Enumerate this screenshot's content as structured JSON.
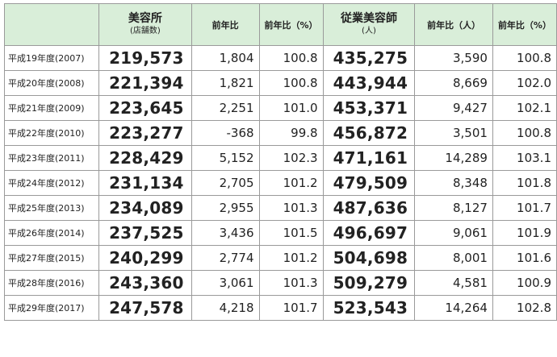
{
  "headers": {
    "blank": "",
    "salons": "美容所",
    "salons_sub": "(店舗数)",
    "yoy_count": "前年比",
    "yoy_pct": "前年比（%）",
    "stylists": "従業美容師",
    "stylists_sub": "(人)",
    "yoy_people": "前年比（人）",
    "yoy_pct2": "前年比（%）"
  },
  "rows": [
    {
      "year": "平成19年度(2007)",
      "salons": "219,573",
      "salons_yoy": "1,804",
      "salons_pct": "100.8",
      "stylists": "435,275",
      "stylists_yoy": "3,590",
      "stylists_pct": "100.8"
    },
    {
      "year": "平成20年度(2008)",
      "salons": "221,394",
      "salons_yoy": "1,821",
      "salons_pct": "100.8",
      "stylists": "443,944",
      "stylists_yoy": "8,669",
      "stylists_pct": "102.0"
    },
    {
      "year": "平成21年度(2009)",
      "salons": "223,645",
      "salons_yoy": "2,251",
      "salons_pct": "101.0",
      "stylists": "453,371",
      "stylists_yoy": "9,427",
      "stylists_pct": "102.1"
    },
    {
      "year": "平成22年度(2010)",
      "salons": "223,277",
      "salons_yoy": "-368",
      "salons_pct": "99.8",
      "stylists": "456,872",
      "stylists_yoy": "3,501",
      "stylists_pct": "100.8"
    },
    {
      "year": "平成23年度(2011)",
      "salons": "228,429",
      "salons_yoy": "5,152",
      "salons_pct": "102.3",
      "stylists": "471,161",
      "stylists_yoy": "14,289",
      "stylists_pct": "103.1"
    },
    {
      "year": "平成24年度(2012)",
      "salons": "231,134",
      "salons_yoy": "2,705",
      "salons_pct": "101.2",
      "stylists": "479,509",
      "stylists_yoy": "8,348",
      "stylists_pct": "101.8"
    },
    {
      "year": "平成25年度(2013)",
      "salons": "234,089",
      "salons_yoy": "2,955",
      "salons_pct": "101.3",
      "stylists": "487,636",
      "stylists_yoy": "8,127",
      "stylists_pct": "101.7"
    },
    {
      "year": "平成26年度(2014)",
      "salons": "237,525",
      "salons_yoy": "3,436",
      "salons_pct": "101.5",
      "stylists": "496,697",
      "stylists_yoy": "9,061",
      "stylists_pct": "101.9"
    },
    {
      "year": "平成27年度(2015)",
      "salons": "240,299",
      "salons_yoy": "2,774",
      "salons_pct": "101.2",
      "stylists": "504,698",
      "stylists_yoy": "8,001",
      "stylists_pct": "101.6"
    },
    {
      "year": "平成28年度(2016)",
      "salons": "243,360",
      "salons_yoy": "3,061",
      "salons_pct": "101.3",
      "stylists": "509,279",
      "stylists_yoy": "4,581",
      "stylists_pct": "100.9"
    },
    {
      "year": "平成29年度(2017)",
      "salons": "247,578",
      "salons_yoy": "4,218",
      "salons_pct": "101.7",
      "stylists": "523,543",
      "stylists_yoy": "14,264",
      "stylists_pct": "102.8"
    }
  ]
}
